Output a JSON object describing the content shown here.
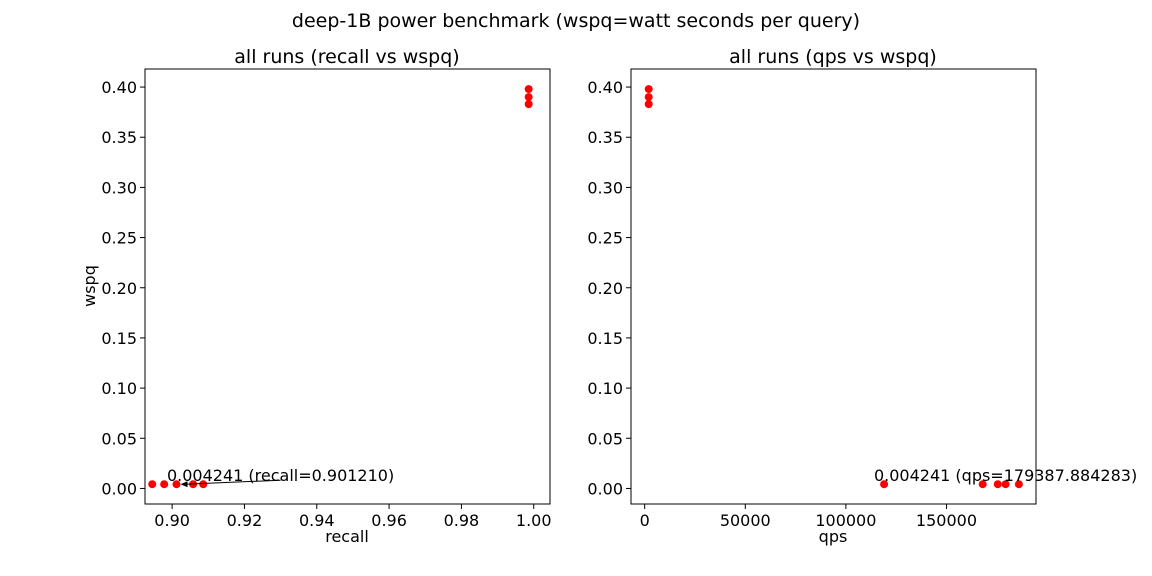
{
  "figure": {
    "suptitle": "deep-1B power benchmark (wspq=watt seconds per query)"
  },
  "chart_data": [
    {
      "type": "scatter",
      "title": "all runs (recall vs wspq)",
      "xlabel": "recall",
      "ylabel": "wspq",
      "xlim": [
        0.8925,
        1.0045
      ],
      "ylim": [
        -0.0155,
        0.418
      ],
      "xticks": [
        0.9,
        0.92,
        0.94,
        0.96,
        0.98,
        1.0
      ],
      "xtick_labels": [
        "0.90",
        "0.92",
        "0.94",
        "0.96",
        "0.98",
        "1.00"
      ],
      "yticks": [
        0.0,
        0.05,
        0.1,
        0.15,
        0.2,
        0.25,
        0.3,
        0.35,
        0.4
      ],
      "ytick_labels": [
        "0.00",
        "0.05",
        "0.10",
        "0.15",
        "0.20",
        "0.25",
        "0.30",
        "0.35",
        "0.40"
      ],
      "point_color": "#ff0000",
      "points": [
        {
          "x": 0.8945,
          "y": 0.0042
        },
        {
          "x": 0.8978,
          "y": 0.0042
        },
        {
          "x": 0.90121,
          "y": 0.004241
        },
        {
          "x": 0.9058,
          "y": 0.0042
        },
        {
          "x": 0.9086,
          "y": 0.0042
        },
        {
          "x": 0.9986,
          "y": 0.383
        },
        {
          "x": 0.9986,
          "y": 0.39
        },
        {
          "x": 0.9986,
          "y": 0.398
        }
      ],
      "annotation": {
        "text": "0.004241 (recall=0.901210)",
        "x": 0.90121,
        "y": 0.004241,
        "arrow_from_x": 0.93,
        "arrow_from_y": 0.0082
      }
    },
    {
      "type": "scatter",
      "title": "all runs (qps vs wspq)",
      "xlabel": "qps",
      "ylabel": "",
      "xlim": [
        -6800,
        194500
      ],
      "ylim": [
        -0.0155,
        0.418
      ],
      "xticks": [
        0,
        50000,
        100000,
        150000
      ],
      "xtick_labels": [
        "0",
        "50000",
        "100000",
        "150000"
      ],
      "yticks": [
        0.0,
        0.05,
        0.1,
        0.15,
        0.2,
        0.25,
        0.3,
        0.35,
        0.4
      ],
      "ytick_labels": [
        "0.00",
        "0.05",
        "0.10",
        "0.15",
        "0.20",
        "0.25",
        "0.30",
        "0.35",
        "0.40"
      ],
      "point_color": "#ff0000",
      "points": [
        {
          "x": 2000,
          "y": 0.383
        },
        {
          "x": 2000,
          "y": 0.39
        },
        {
          "x": 2000,
          "y": 0.398
        },
        {
          "x": 119000,
          "y": 0.0042
        },
        {
          "x": 168000,
          "y": 0.0042
        },
        {
          "x": 175500,
          "y": 0.0042
        },
        {
          "x": 179387.884283,
          "y": 0.004241
        },
        {
          "x": 186000,
          "y": 0.0042
        }
      ],
      "annotation": {
        "text": "0.004241 (qps=179387.884283)",
        "x": 179387.884283,
        "y": 0.004241,
        "arrow_from_x": 179387.884283,
        "arrow_from_y": 0.0082
      }
    }
  ]
}
